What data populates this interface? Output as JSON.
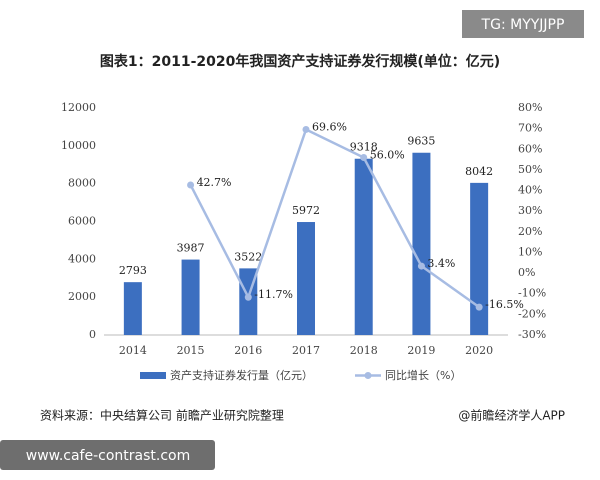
{
  "chart_data": {
    "type": "bar-line",
    "title": "图表1：2011-2020年我国资产支持证券发行规模(单位：亿元)",
    "categories": [
      "2014",
      "2015",
      "2016",
      "2017",
      "2018",
      "2019",
      "2020"
    ],
    "series": [
      {
        "name": "资产支持证券发行量（亿元）",
        "color": "#3c6fc0",
        "type": "bar",
        "values": [
          2793,
          3987,
          3522,
          5972,
          9318,
          9635,
          8042
        ]
      },
      {
        "name": "同比增长（%）",
        "color": "#a7bce3",
        "type": "line",
        "axis": "y2",
        "values": [
          null,
          42.7,
          -11.7,
          69.6,
          56.0,
          3.4,
          -16.5
        ],
        "value_labels": [
          null,
          "42.7%",
          "-11.7%",
          "69.6%",
          "56.0%",
          "3.4%",
          "-16.5%"
        ]
      }
    ],
    "ylim": [
      0,
      12000
    ],
    "yticks": [
      0,
      2000,
      4000,
      6000,
      8000,
      10000,
      12000
    ],
    "y2lim": [
      -30,
      80
    ],
    "y2ticks": [
      {
        "value": -30,
        "label": "-30%"
      },
      {
        "value": -20,
        "label": "-20%"
      },
      {
        "value": -10,
        "label": "-10%"
      },
      {
        "value": 0,
        "label": "0%"
      },
      {
        "value": 10,
        "label": "10%"
      },
      {
        "value": 20,
        "label": "20%"
      },
      {
        "value": 30,
        "label": "30%"
      },
      {
        "value": 40,
        "label": "40%"
      },
      {
        "value": 50,
        "label": "50%"
      },
      {
        "value": 60,
        "label": "60%"
      },
      {
        "value": 70,
        "label": "70%"
      },
      {
        "value": 80,
        "label": "80%"
      }
    ],
    "source": "资料来源：中央结算公司 前瞻产业研究院整理",
    "credit": "@前瞻经济学人APP",
    "watermark_top": "TG: MYYJJPP",
    "watermark_bottom": "www.cafe-contrast.com"
  }
}
